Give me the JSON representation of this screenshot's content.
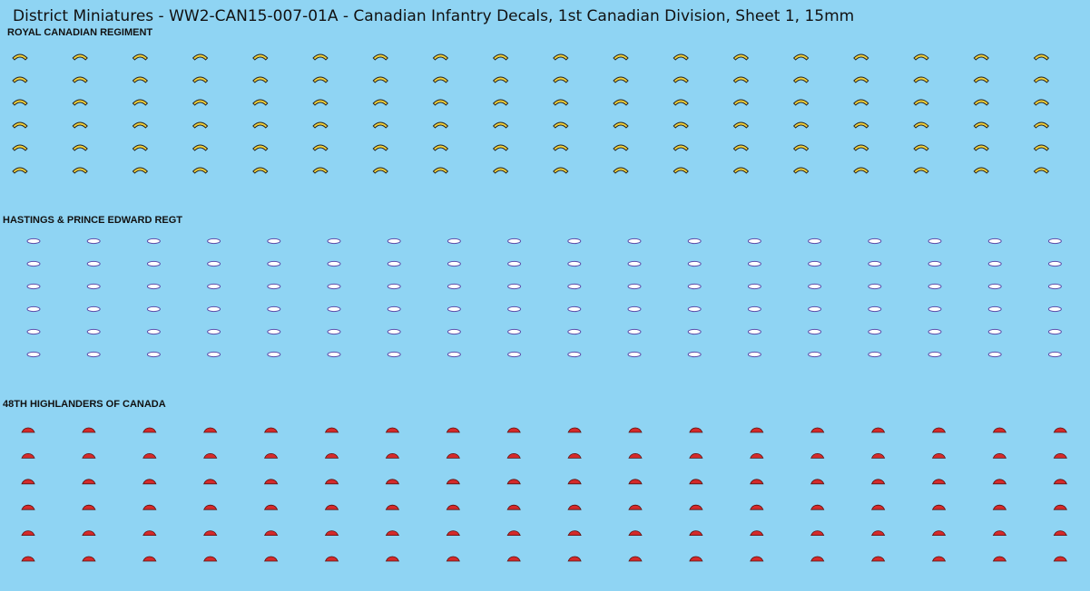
{
  "header": {
    "title": "District Miniatures - WW2-CAN15-007-01A - Canadian Infantry Decals, 1st Canadian Division, Sheet 1, 15mm"
  },
  "sections": [
    {
      "label": "ROYAL CANADIAN REGIMENT"
    },
    {
      "label": "HASTINGS & PRINCE EDWARD REGT"
    },
    {
      "label": "48TH HIGHLANDERS OF CANADA"
    }
  ]
}
